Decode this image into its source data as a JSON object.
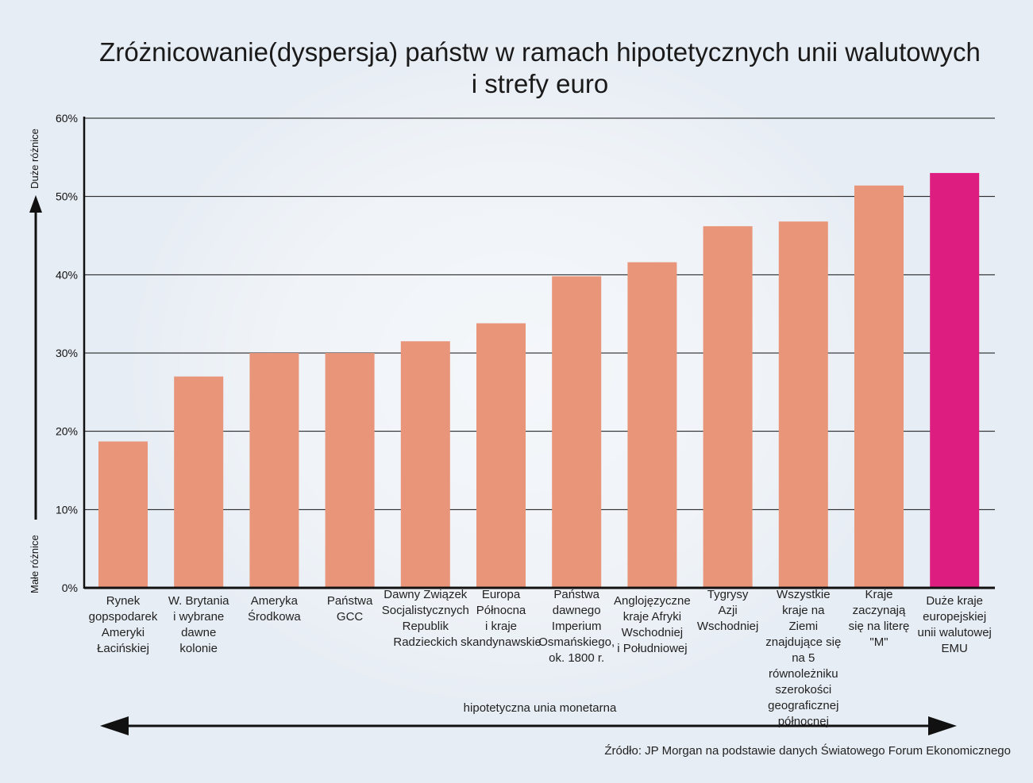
{
  "chart_data": {
    "type": "bar",
    "title_line1": "Zróżnicowanie(dyspersja) państw w ramach hipotetycznych unii walutowych",
    "title_line2": "i strefy euro",
    "ylabel_top": "Duże różnice",
    "ylabel_bottom": "Małe różnice",
    "ylim": [
      0,
      60
    ],
    "yticks": [
      0,
      10,
      20,
      30,
      40,
      50,
      60
    ],
    "ytick_labels": [
      "0%",
      "10%",
      "20%",
      "30%",
      "40%",
      "50%",
      "60%"
    ],
    "categories": [
      "Rynek gopspodarek Ameryki Łacińskiej",
      "W. Brytania i wybrane dawne kolonie",
      "Ameryka Środkowa",
      "Państwa GCC",
      "Dawny Związek Socjalistycznych Republik Radzieckich",
      "Europa Północna i kraje skandynawskie",
      "Państwa dawnego Imperium Osmańskiego, ok. 1800 r.",
      "Anglojęzyczne kraje Afryki Wschodniej i Południowej",
      "Tygrysy Azji Wschodniej",
      "Wszystkie kraje na Ziemi znajdujące się na 5 równoleżniku szerokości geograficznej północnej",
      "Kraje zaczynają się na literę \"M\"",
      "Duże kraje europejskiej unii walutowej EMU"
    ],
    "category_lines": [
      [
        "Rynek",
        "gopspodarek",
        "Ameryki",
        "Łacińskiej"
      ],
      [
        "W. Brytania",
        "i wybrane",
        "dawne",
        "kolonie"
      ],
      [
        "Ameryka",
        "Środkowa"
      ],
      [
        "Państwa",
        "GCC"
      ],
      [
        "Dawny Związek",
        "Socjalistycznych",
        "Republik",
        "Radzieckich"
      ],
      [
        "Europa",
        "Północna",
        "i kraje",
        "skandynawskie"
      ],
      [
        "Państwa",
        "dawnego",
        "Imperium",
        "Osmańskiego,",
        "ok. 1800 r."
      ],
      [
        "Anglojęzyczne",
        "kraje Afryki",
        "Wschodniej",
        "i Południowej"
      ],
      [
        "Tygrysy",
        "Azji",
        "Wschodniej"
      ],
      [
        "Wszystkie",
        "kraje na",
        "Ziemi",
        "znajdujące się",
        "na 5 równoleżniku",
        "szerokości",
        "geograficznej",
        "północnej"
      ],
      [
        "Kraje",
        "zaczynają",
        "się na literę",
        "\"M\""
      ],
      [
        "Duże kraje",
        "europejskiej",
        "unii walutowej",
        "EMU"
      ]
    ],
    "label_offsets": [
      0,
      0,
      0,
      0,
      -8,
      -8,
      -8,
      0,
      -8,
      -8,
      -8,
      0
    ],
    "values": [
      18.7,
      27.0,
      30.0,
      30.0,
      31.5,
      33.8,
      39.8,
      41.6,
      46.2,
      46.8,
      51.4,
      53.0
    ],
    "colors": [
      "#e8957a",
      "#e8957a",
      "#e8957a",
      "#e8957a",
      "#e8957a",
      "#e8957a",
      "#e8957a",
      "#e8957a",
      "#e8957a",
      "#e8957a",
      "#e8957a",
      "#dd1e80"
    ],
    "xcaption": "hipotetyczna unia monetarna",
    "source": "Źródło: JP Morgan na podstawie danych Światowego Forum Ekonomicznego",
    "grid": true
  }
}
